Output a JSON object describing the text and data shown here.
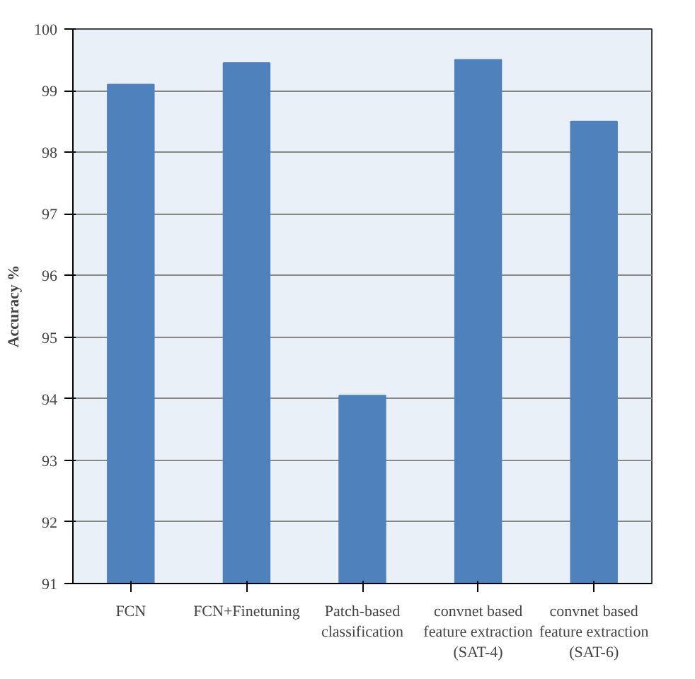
{
  "chart_data": {
    "type": "bar",
    "ylabel": "Accuracy %",
    "categories": [
      "FCN",
      "FCN+Finetuning",
      "Patch-based classification",
      "convnet based feature extraction (SAT-4)",
      "convnet based feature extraction (SAT-6)"
    ],
    "values": [
      99.1,
      99.45,
      94.05,
      99.5,
      98.5
    ],
    "color": "#4f81bd",
    "ylim": [
      91,
      100
    ],
    "yticks": [
      91,
      92,
      93,
      94,
      95,
      96,
      97,
      98,
      99,
      100
    ],
    "grid": "y"
  }
}
